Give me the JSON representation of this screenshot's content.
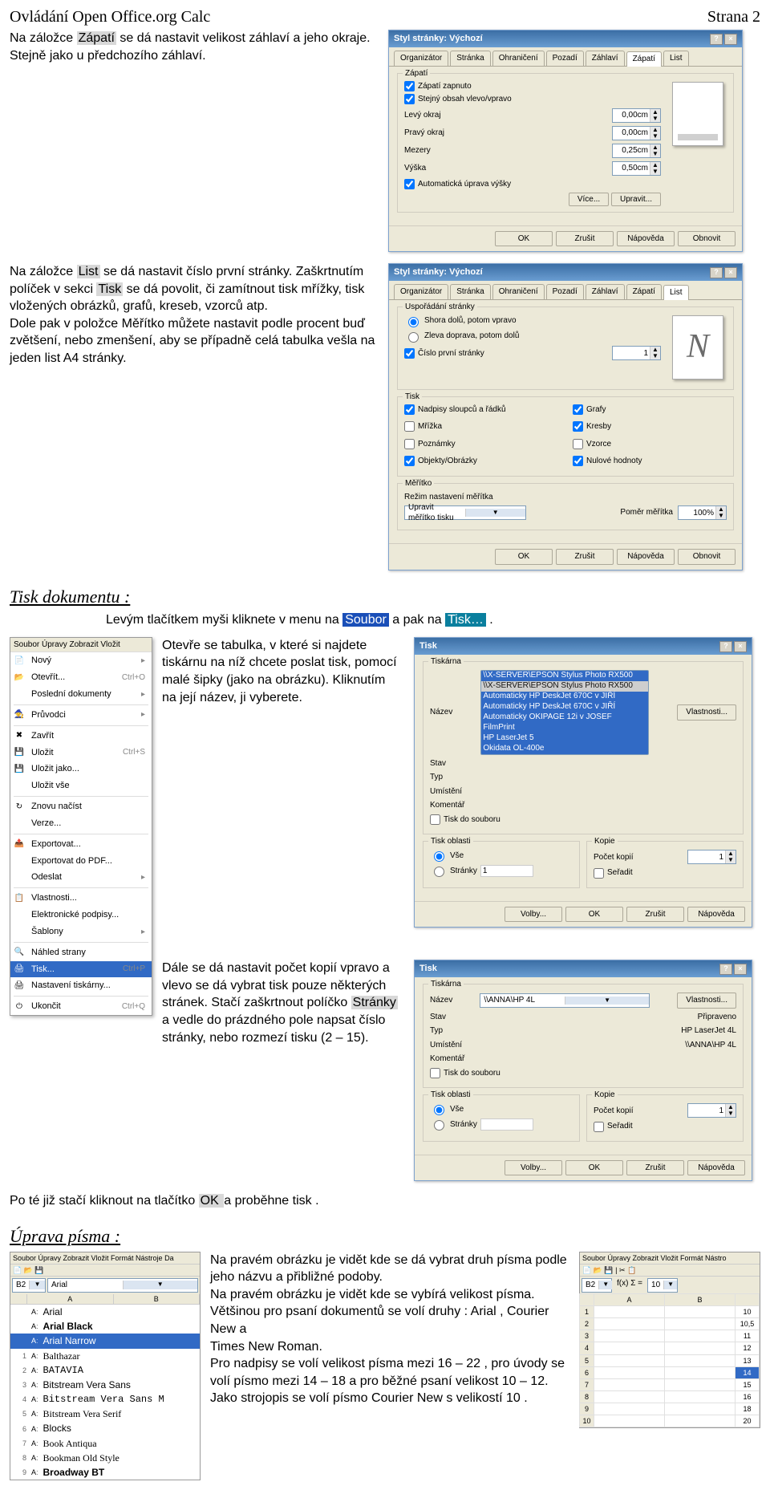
{
  "header": {
    "title": "Ovládání Open Office.org Calc",
    "page": "Strana 2"
  },
  "p1": {
    "t1a": "Na záložce ",
    "t1hl": "Zápatí",
    "t1b": " se dá nastavit velikost záhlaví a jeho okraje. Stejně jako u předchozího záhlaví."
  },
  "p2": {
    "t1a": "Na záložce ",
    "t1hl": "List",
    "t1b": " se dá nastavit číslo první stránky. Zaškrtnutím políček v sekci ",
    "t2hl": "Tisk",
    "t2b": " se dá povolit, či zamítnout tisk mřížky, tisk vložených obrázků, grafů, kreseb, vzorců atp.",
    "t3": "Dole pak v položce Měřítko můžete nastavit podle procent buď zvětšení, nebo zmenšení, aby se případně celá tabulka vešla na jeden list A4 stránky."
  },
  "dlg1": {
    "title": "Styl stránky: Výchozí",
    "tabs": [
      "Organizátor",
      "Stránka",
      "Ohraničení",
      "Pozadí",
      "Záhlaví",
      "Zápatí",
      "List"
    ],
    "active": 5,
    "grp": "Zápatí",
    "chk1": "Zápatí zapnuto",
    "chk2": "Stejný obsah vlevo/vpravo",
    "f": [
      [
        "Levý okraj",
        "0,00cm"
      ],
      [
        "Pravý okraj",
        "0,00cm"
      ],
      [
        "Mezery",
        "0,25cm"
      ],
      [
        "Výška",
        "0,50cm"
      ]
    ],
    "chk3": "Automatická úprava výšky",
    "btns1": [
      "Více...",
      "Upravit..."
    ],
    "btns2": [
      "OK",
      "Zrušit",
      "Nápověda",
      "Obnovit"
    ]
  },
  "dlg2": {
    "title": "Styl stránky: Výchozí",
    "tabs": [
      "Organizátor",
      "Stránka",
      "Ohraničení",
      "Pozadí",
      "Záhlaví",
      "Zápatí",
      "List"
    ],
    "active": 6,
    "g1": "Uspořádání stránky",
    "r1": "Shora dolů, potom vpravo",
    "r2": "Zleva doprava, potom dolů",
    "chkFirst": "Číslo první stránky",
    "firstVal": "1",
    "g2": "Tisk",
    "opts": [
      [
        "Nadpisy sloupců a řádků",
        true
      ],
      [
        "Grafy",
        true
      ],
      [
        "Mřížka",
        false
      ],
      [
        "Kresby",
        true
      ],
      [
        "Poznámky",
        false
      ],
      [
        "Vzorce",
        false
      ],
      [
        "Objekty/Obrázky",
        true
      ],
      [
        "Nulové hodnoty",
        true
      ]
    ],
    "g3": "Měřítko",
    "modeLbl": "Režim nastavení měřítka",
    "modeVal": "Upravit měřítko tisku",
    "scaleLbl": "Poměr měřítka",
    "scaleVal": "100%",
    "btns": [
      "OK",
      "Zrušit",
      "Nápověda",
      "Obnovit"
    ]
  },
  "sec1": {
    "title": "Tisk dokumentu :",
    "line": "Levým tlačítkem myši kliknete v menu na ",
    "w1": "Soubor",
    "mid": " a pak na ",
    "w2": "Tisk…",
    "end": " ."
  },
  "menu": {
    "bar": "Soubor  Úpravy  Zobrazit  Vložit",
    "items": [
      {
        "ic": "📄",
        "l": "Nový",
        "s": "▸"
      },
      {
        "ic": "📂",
        "l": "Otevřít...",
        "s": "Ctrl+O"
      },
      {
        "ic": "",
        "l": "Poslední dokumenty",
        "s": "▸"
      },
      {
        "sep": true
      },
      {
        "ic": "🧙",
        "l": "Průvodci",
        "s": "▸"
      },
      {
        "sep": true
      },
      {
        "ic": "✖",
        "l": "Zavřít",
        "s": ""
      },
      {
        "ic": "💾",
        "l": "Uložit",
        "s": "Ctrl+S"
      },
      {
        "ic": "💾",
        "l": "Uložit jako...",
        "s": ""
      },
      {
        "ic": "",
        "l": "Uložit vše",
        "s": ""
      },
      {
        "sep": true
      },
      {
        "ic": "↻",
        "l": "Znovu načíst",
        "s": ""
      },
      {
        "ic": "",
        "l": "Verze...",
        "s": ""
      },
      {
        "sep": true
      },
      {
        "ic": "📤",
        "l": "Exportovat...",
        "s": ""
      },
      {
        "ic": "",
        "l": "Exportovat do PDF...",
        "s": ""
      },
      {
        "ic": "",
        "l": "Odeslat",
        "s": "▸"
      },
      {
        "sep": true
      },
      {
        "ic": "📋",
        "l": "Vlastnosti...",
        "s": ""
      },
      {
        "ic": "",
        "l": "Elektronické podpisy...",
        "s": ""
      },
      {
        "ic": "",
        "l": "Šablony",
        "s": "▸"
      },
      {
        "sep": true
      },
      {
        "ic": "🔍",
        "l": "Náhled strany",
        "s": ""
      },
      {
        "ic": "🖨",
        "l": "Tisk...",
        "s": "Ctrl+P",
        "sel": true
      },
      {
        "ic": "🖨",
        "l": "Nastavení tiskárny...",
        "s": ""
      },
      {
        "sep": true
      },
      {
        "ic": "⏻",
        "l": "Ukončit",
        "s": "Ctrl+Q"
      }
    ]
  },
  "p3": {
    "t": "Otevře se tabulka, v které si najdete tiskárnu na níž chcete poslat tisk, pomocí malé šipky (jako na obrázku). Kliknutím na její název, ji vyberete."
  },
  "p4": {
    "t1": "Dále se dá nastavit počet kopií vpravo a vlevo se dá vybrat tisk pouze některých stránek. Stačí zaškrtnout políčko ",
    "hl": "Stránky",
    "t2": " a vedle do prázdného pole napsat číslo stránky, nebo rozmezí tisku (2 – 15)."
  },
  "p5": {
    "t1": "Po té již stačí kliknout na tlačítko ",
    "hl": " OK ",
    "t2": " a proběhne tisk ."
  },
  "dlg3": {
    "title": "Tisk",
    "g1": "Tiskárna",
    "nameLbl": "Název",
    "printers": [
      "\\\\X-SERVER\\EPSON Stylus Photo RX500",
      "\\\\X-SERVER\\EPSON Stylus Photo RX500",
      "Automaticky HP DeskJet 670C v JIŘÍ",
      "Automaticky HP DeskJet 670C v JIŘÍ",
      "Automaticky OKIPAGE 12i v JOSEF",
      "FilmPrint",
      "HP LaserJet 5",
      "Okidata OL-400e"
    ],
    "rows": [
      [
        "Stav",
        ""
      ],
      [
        "Typ",
        ""
      ],
      [
        "Umístění",
        ""
      ],
      [
        "Komentář",
        ""
      ]
    ],
    "chkFile": "Tisk do souboru",
    "props": "Vlastnosti...",
    "g2": "Tisk oblasti",
    "r1": "Vše",
    "r2": "Stránky",
    "g3": "Kopie",
    "kopLbl": "Počet kopií",
    "kopVal": "1",
    "sort": "Seřadit",
    "btns": [
      "Volby...",
      "OK",
      "Zrušit",
      "Nápověda"
    ]
  },
  "dlg4": {
    "title": "Tisk",
    "g1": "Tiskárna",
    "nameLbl": "Název",
    "prn": "\\\\ANNA\\HP 4L",
    "rows": [
      [
        "Stav",
        "Připraveno"
      ],
      [
        "Typ",
        "HP LaserJet 4L"
      ],
      [
        "Umístění",
        "\\\\ANNA\\HP 4L"
      ],
      [
        "Komentář",
        ""
      ]
    ],
    "chkFile": "Tisk do souboru",
    "props": "Vlastnosti...",
    "g2": "Tisk oblasti",
    "r1": "Vše",
    "r2": "Stránky",
    "g3": "Kopie",
    "kopLbl": "Počet kopií",
    "kopVal": "1",
    "sort": "Seřadit",
    "btns": [
      "Volby...",
      "OK",
      "Zrušit",
      "Nápověda"
    ]
  },
  "sec2": {
    "title": "Úprava písma :",
    "t1": "Na pravém obrázku je vidět kde se dá vybrat druh písma podle jeho názvu a přibližné podoby.",
    "t2": "Na pravém obrázku je vidět kde se vybírá velikost písma.",
    "t3": "Většinou pro psaní dokumentů se volí druhy : Arial , Courier New a",
    "t4": "Times New Roman.",
    "t5": "Pro nadpisy se volí velikost písma mezi 16 – 22 , pro úvody se volí písmo mezi 14 – 18 a pro běžné psaní velikost 10 – 12. Jako strojopis se volí písmo Courier New s velikostí 10 ."
  },
  "fontlist": {
    "bar": "Soubor  Úpravy  Zobrazit  Vložit  Formát  Nástroje  Da",
    "cell": "B2",
    "cur": "Arial",
    "items": [
      {
        "n": "",
        "l": "Arial",
        "f": "Arial"
      },
      {
        "n": "",
        "l": "Arial Black",
        "f": "'Arial Black',Arial",
        "w": "900"
      },
      {
        "n": "",
        "l": "Arial Narrow",
        "sel": true,
        "f": "'Arial Narrow',Arial"
      },
      {
        "n": "1",
        "l": "Balthazar",
        "f": "cursive"
      },
      {
        "n": "2",
        "l": "BATAVIA",
        "f": "monospace"
      },
      {
        "n": "3",
        "l": "Bitstream Vera Sans",
        "f": "Verdana,sans-serif"
      },
      {
        "n": "4",
        "l": "Bitstream Vera Sans M",
        "f": "'Courier New',monospace"
      },
      {
        "n": "5",
        "l": "Bitstream Vera Serif",
        "f": "Georgia,serif"
      },
      {
        "n": "6",
        "l": "Blocks",
        "f": "sans-serif"
      },
      {
        "n": "7",
        "l": "Book Antiqua",
        "f": "'Book Antiqua',Georgia,serif"
      },
      {
        "n": "8",
        "l": "Bookman Old Style",
        "f": "'Bookman Old Style',Georgia,serif"
      },
      {
        "n": "9",
        "l": "Broadway BT",
        "f": "Impact,sans-serif",
        "w": "bold"
      }
    ]
  },
  "sizelist": {
    "bar": "Soubor  Úpravy  Zobrazit  Vložit  Formát  Nástro",
    "cell": "B2",
    "fx": "f(x)  Σ  =",
    "cur": "10",
    "cols": [
      "",
      "A",
      "B",
      ""
    ],
    "rows": [
      [
        "1",
        "",
        "",
        "10"
      ],
      [
        "2",
        "",
        "",
        "10,5"
      ],
      [
        "3",
        "",
        "",
        "11"
      ],
      [
        "4",
        "",
        "",
        "12"
      ],
      [
        "5",
        "",
        "",
        "13"
      ],
      [
        "6",
        "",
        "",
        "14",
        "sel"
      ],
      [
        "7",
        "",
        "",
        "15"
      ],
      [
        "8",
        "",
        "",
        "16"
      ],
      [
        "9",
        "",
        "",
        "18"
      ],
      [
        "10",
        "",
        "",
        "20"
      ]
    ]
  }
}
